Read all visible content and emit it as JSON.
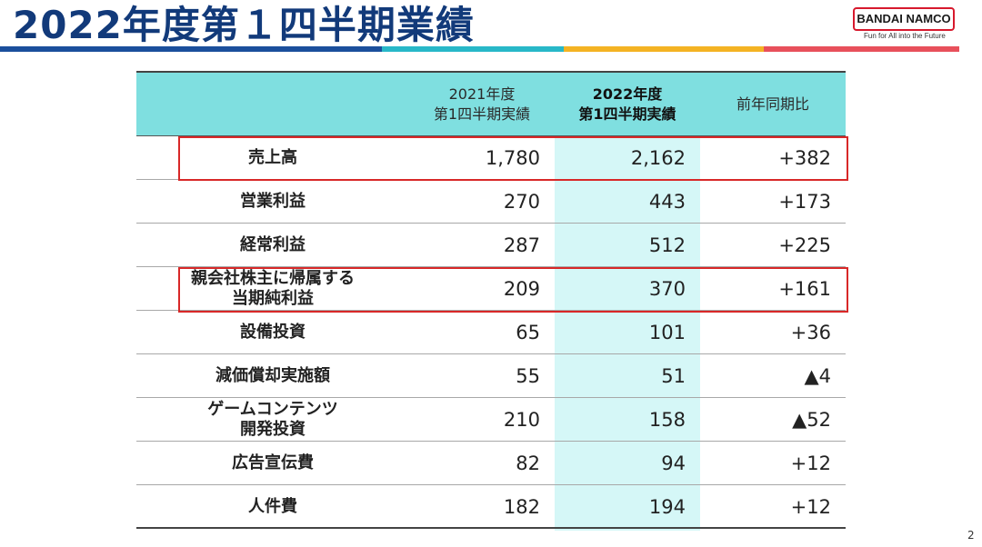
{
  "header": {
    "title": "2022年度第１四半期業績",
    "logo_text": "BANDAI NAMCO",
    "logo_tagline": "Fun for All into the Future",
    "colors": {
      "title": "#123a7a",
      "stripe": [
        "#1b4f9c",
        "#28b8c8",
        "#f4b323",
        "#e8505b"
      ],
      "logo_border": "#d7192d"
    }
  },
  "table": {
    "columns": [
      "",
      "2021年度\n第1四半期実績",
      "2022年度\n第1四半期実績",
      "前年同期比"
    ],
    "header_bg": "#7fdfe0",
    "highlight_col_bg": "#d5f7f7",
    "rows": [
      {
        "label": "売上高",
        "fy2021": "1,780",
        "fy2022": "2,162",
        "yoy": "+382"
      },
      {
        "label": "営業利益",
        "fy2021": "270",
        "fy2022": "443",
        "yoy": "+173"
      },
      {
        "label": "経常利益",
        "fy2021": "287",
        "fy2022": "512",
        "yoy": "+225"
      },
      {
        "label": "親会社株主に帰属する\n当期純利益",
        "fy2021": "209",
        "fy2022": "370",
        "yoy": "+161"
      },
      {
        "label": "設備投資",
        "fy2021": "65",
        "fy2022": "101",
        "yoy": "+36"
      },
      {
        "label": "減価償却実施額",
        "fy2021": "55",
        "fy2022": "51",
        "yoy": "▲4"
      },
      {
        "label": "ゲームコンテンツ\n開発投資",
        "fy2021": "210",
        "fy2022": "158",
        "yoy": "▲52"
      },
      {
        "label": "広告宣伝費",
        "fy2021": "82",
        "fy2022": "94",
        "yoy": "+12"
      },
      {
        "label": "人件費",
        "fy2021": "182",
        "fy2022": "194",
        "yoy": "+12"
      }
    ],
    "highlighted_rows": [
      "売上高",
      "親会社株主に帰属する当期純利益"
    ],
    "highlight_border_color": "#d82828"
  },
  "footer": {
    "page_number": "2"
  }
}
